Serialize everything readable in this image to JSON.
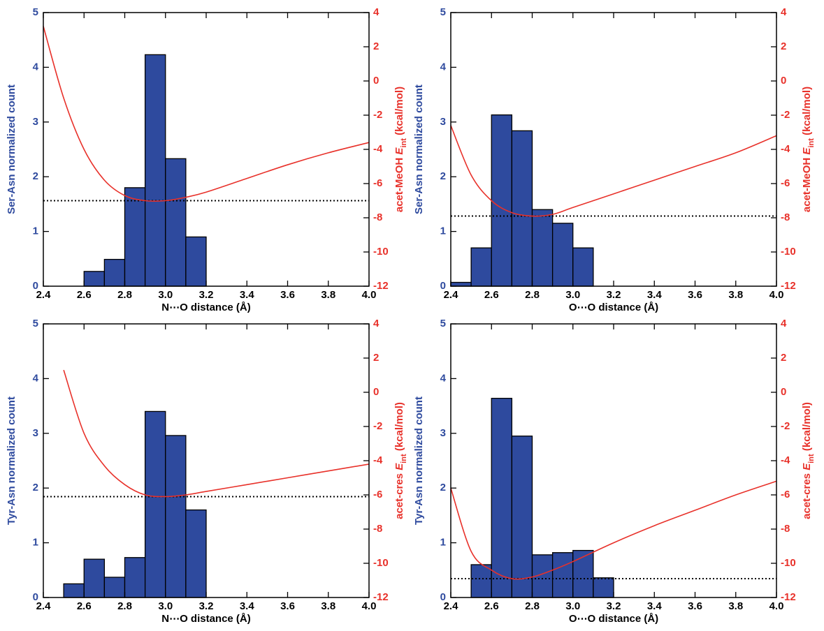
{
  "chart_data": [
    {
      "type": "histogram",
      "xlabel": "N⋯O distance (Å)",
      "ylabel": "Ser-Asn normalized count",
      "y2label": [
        "acet-MeOH ",
        "E",
        "int",
        " (kcal/mol)"
      ],
      "bins": [
        2.6,
        2.7,
        2.8,
        2.9,
        3.0,
        3.1,
        3.2
      ],
      "values": [
        0.27,
        0.49,
        1.8,
        4.23,
        2.33,
        0.9
      ],
      "color": "#2e4a9e",
      "series": [
        {
          "color": "#e8312a",
          "axis": "y2",
          "x": [
            2.4,
            2.5,
            2.6,
            2.7,
            2.8,
            2.9,
            3.0,
            3.1,
            3.2,
            3.4,
            3.6,
            3.8,
            4.0
          ],
          "values": [
            3.2,
            -1.0,
            -4.0,
            -5.8,
            -6.7,
            -7.0,
            -7.0,
            -6.8,
            -6.5,
            -5.7,
            -4.9,
            -4.2,
            -3.6
          ]
        }
      ],
      "hline": {
        "value": -7.0,
        "axis": "y2",
        "color": "#000000"
      },
      "xlim": [
        2.4,
        4.0
      ],
      "xticks": [
        2.4,
        2.6,
        2.8,
        {
          "value": 3,
          "label": "3.0"
        },
        3.2,
        3.4,
        3.6,
        3.8,
        {
          "value": 4,
          "label": "4.0"
        }
      ],
      "ylim": [
        0,
        5
      ],
      "yticks": [
        0,
        1,
        2,
        3,
        4,
        5
      ],
      "y2lim": [
        -12,
        4
      ],
      "y2ticks": [
        -12,
        -10,
        -8,
        -6,
        -4,
        -2,
        0,
        2,
        4
      ]
    },
    {
      "type": "histogram",
      "xlabel": "O⋯O distance (Å)",
      "ylabel": "Ser-Asn normalized count",
      "y2label": [
        "acet-MeOH ",
        "E",
        "int",
        " (kcal/mol)"
      ],
      "bins": [
        2.4,
        2.5,
        2.6,
        2.7,
        2.8,
        2.9,
        3.0,
        3.1
      ],
      "values": [
        0.07,
        0.7,
        3.13,
        2.84,
        1.4,
        1.15,
        0.7
      ],
      "color": "#2e4a9e",
      "series": [
        {
          "color": "#e8312a",
          "axis": "y2",
          "x": [
            2.4,
            2.5,
            2.6,
            2.7,
            2.8,
            2.9,
            3.0,
            3.2,
            3.4,
            3.6,
            3.8,
            4.0
          ],
          "values": [
            -2.6,
            -5.5,
            -7.0,
            -7.7,
            -7.9,
            -7.8,
            -7.4,
            -6.6,
            -5.8,
            -5.0,
            -4.2,
            -3.2
          ]
        }
      ],
      "hline": {
        "value": -7.9,
        "axis": "y2",
        "color": "#000000"
      },
      "xlim": [
        2.4,
        4.0
      ],
      "xticks": [
        2.4,
        2.6,
        2.8,
        {
          "value": 3,
          "label": "3.0"
        },
        3.2,
        3.4,
        3.6,
        3.8,
        {
          "value": 4,
          "label": "4.0"
        }
      ],
      "ylim": [
        0,
        5
      ],
      "yticks": [
        0,
        1,
        2,
        3,
        4,
        5
      ],
      "y2lim": [
        -12,
        4
      ],
      "y2ticks": [
        -12,
        -10,
        -8,
        -6,
        -4,
        -2,
        0,
        2,
        4
      ]
    },
    {
      "type": "histogram",
      "xlabel": "N⋯O distance (Å)",
      "ylabel": "Tyr-Asn normalized count",
      "y2label": [
        "acet-cres ",
        "E",
        "int",
        " (kcal/mol)"
      ],
      "bins": [
        2.5,
        2.6,
        2.7,
        2.8,
        2.9,
        3.0,
        3.1,
        3.2
      ],
      "values": [
        0.25,
        0.7,
        0.37,
        0.73,
        3.4,
        2.96,
        1.6
      ],
      "color": "#2e4a9e",
      "series": [
        {
          "color": "#e8312a",
          "axis": "y2",
          "x": [
            2.5,
            2.6,
            2.7,
            2.8,
            2.9,
            3.0,
            3.1,
            3.2,
            3.4,
            3.6,
            3.8,
            4.0
          ],
          "values": [
            1.3,
            -2.4,
            -4.3,
            -5.4,
            -6.0,
            -6.1,
            -6.0,
            -5.8,
            -5.4,
            -5.0,
            -4.6,
            -4.2
          ]
        }
      ],
      "hline": {
        "value": -6.1,
        "axis": "y2",
        "color": "#000000"
      },
      "xlim": [
        2.4,
        4.0
      ],
      "xticks": [
        2.4,
        2.6,
        2.8,
        {
          "value": 3,
          "label": "3.0"
        },
        3.2,
        3.4,
        3.6,
        3.8,
        {
          "value": 4,
          "label": "4.0"
        }
      ],
      "ylim": [
        0,
        5
      ],
      "yticks": [
        0,
        1,
        2,
        3,
        4,
        5
      ],
      "y2lim": [
        -12,
        4
      ],
      "y2ticks": [
        -12,
        -10,
        -8,
        -6,
        -4,
        -2,
        0,
        2,
        4
      ]
    },
    {
      "type": "histogram",
      "xlabel": "O⋯O distance (Å)",
      "ylabel": "Tyr-Asn normalized count",
      "y2label": [
        "acet-cres ",
        "E",
        "int",
        " (kcal/mol)"
      ],
      "bins": [
        2.5,
        2.6,
        2.7,
        2.8,
        2.9,
        3.0,
        3.1,
        3.2
      ],
      "values": [
        0.6,
        3.64,
        2.95,
        0.78,
        0.82,
        0.86,
        0.36
      ],
      "color": "#2e4a9e",
      "series": [
        {
          "color": "#e8312a",
          "axis": "y2",
          "x": [
            2.4,
            2.5,
            2.6,
            2.7,
            2.8,
            2.9,
            3.0,
            3.2,
            3.4,
            3.6,
            3.8,
            4.0
          ],
          "values": [
            -5.6,
            -9.3,
            -10.4,
            -10.9,
            -10.8,
            -10.4,
            -9.9,
            -8.8,
            -7.8,
            -6.9,
            -6.0,
            -5.2
          ]
        }
      ],
      "hline": {
        "value": -10.9,
        "axis": "y2",
        "color": "#000000"
      },
      "xlim": [
        2.4,
        4.0
      ],
      "xticks": [
        2.4,
        2.6,
        2.8,
        {
          "value": 3,
          "label": "3.0"
        },
        3.2,
        3.4,
        3.6,
        3.8,
        {
          "value": 4,
          "label": "4.0"
        }
      ],
      "ylim": [
        0,
        5
      ],
      "yticks": [
        0,
        1,
        2,
        3,
        4,
        5
      ],
      "y2lim": [
        -12,
        4
      ],
      "y2ticks": [
        -12,
        -10,
        -8,
        -6,
        -4,
        -2,
        0,
        2,
        4
      ]
    }
  ]
}
